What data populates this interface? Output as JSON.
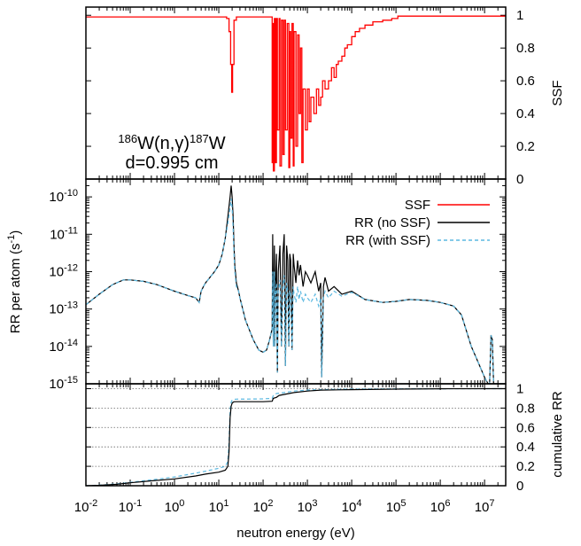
{
  "chart_data": [
    {
      "panel": "top",
      "type": "line",
      "xscale": "log",
      "xlim": [
        0.01,
        30000000
      ],
      "ylim": [
        0,
        1.05
      ],
      "ylabel": "SSF",
      "yticks": [
        "0",
        "0.2",
        "0.4",
        "0.6",
        "0.8",
        "1"
      ],
      "annotations": {
        "reaction_pre_sup": "186",
        "reaction_body": "W(n,γ)",
        "reaction_post_sup": "187",
        "reaction_end": "W",
        "thickness": "d=0.995 cm"
      },
      "series": [
        {
          "name": "SSF",
          "color": "#ff0000",
          "x": [
            0.01,
            15,
            17,
            18.5,
            19.5,
            20.5,
            22,
            25,
            150,
            160,
            165,
            170,
            180,
            190,
            200,
            210,
            230,
            240,
            260,
            280,
            300,
            320,
            350,
            380,
            400,
            420,
            450,
            480,
            500,
            550,
            600,
            650,
            700,
            750,
            800,
            900,
            1000,
            1100,
            1200,
            1400,
            1600,
            1800,
            2000,
            2200,
            2500,
            3000,
            3500,
            4000,
            4500,
            5000,
            6000,
            7000,
            8000,
            10000,
            12000,
            15000,
            20000,
            30000,
            50000,
            80000,
            110000,
            1000000,
            30000000
          ],
          "y": [
            0.99,
            0.98,
            0.9,
            0.7,
            0.53,
            0.7,
            0.97,
            0.99,
            0.99,
            0.1,
            0.95,
            0.05,
            0.98,
            0.1,
            0.98,
            0.3,
            0.98,
            0.08,
            0.97,
            0.15,
            0.97,
            0.3,
            0.95,
            0.07,
            0.9,
            0.25,
            0.95,
            0.08,
            0.9,
            0.2,
            0.88,
            0.4,
            0.8,
            0.1,
            0.55,
            0.3,
            0.55,
            0.35,
            0.5,
            0.4,
            0.55,
            0.45,
            0.5,
            0.6,
            0.55,
            0.6,
            0.68,
            0.62,
            0.7,
            0.72,
            0.75,
            0.8,
            0.82,
            0.87,
            0.9,
            0.92,
            0.94,
            0.96,
            0.97,
            0.98,
            0.995,
            0.995,
            0.995
          ]
        }
      ]
    },
    {
      "panel": "middle",
      "type": "line",
      "xscale": "log",
      "yscale": "log",
      "xlim": [
        0.01,
        30000000
      ],
      "ylim": [
        1e-15,
        3e-10
      ],
      "ylabel_main": "RR per atom (s",
      "ylabel_sup": "-1",
      "ylabel_end": ")",
      "ytick_exponents": [
        "-10",
        "-11",
        "-12",
        "-13",
        "-14",
        "-15"
      ],
      "ytick_base": "10",
      "legend_position": "top-right",
      "series": [
        {
          "name": "RR (no SSF)",
          "color": "#000000",
          "x": [
            0.01,
            0.02,
            0.04,
            0.07,
            0.1,
            0.2,
            0.4,
            0.7,
            1,
            2,
            3,
            3.6,
            4,
            4.5,
            5,
            6,
            8,
            10,
            12,
            14,
            16,
            18,
            19,
            20,
            21,
            22,
            23,
            25,
            28,
            30,
            40,
            60,
            80,
            100,
            120,
            140,
            160,
            165,
            170,
            175,
            180,
            185,
            190,
            200,
            210,
            220,
            240,
            260,
            280,
            300,
            320,
            340,
            360,
            380,
            400,
            420,
            450,
            480,
            500,
            550,
            600,
            650,
            700,
            800,
            900,
            1000,
            1200,
            1500,
            1800,
            2000,
            2100,
            2300,
            2500,
            3000,
            4000,
            6000,
            10000,
            20000,
            50000,
            100000,
            200000,
            500000,
            1000000,
            2000000,
            3000000,
            5000000,
            7000000,
            10000000,
            12000000,
            13000000,
            14000000,
            15000000,
            16000000,
            20000000,
            30000000
          ],
          "y": [
            1.3e-13,
            2.5e-13,
            4.5e-13,
            6e-13,
            6e-13,
            5.5e-13,
            4.5e-13,
            3.5e-13,
            3e-13,
            2.3e-13,
            2e-13,
            1.5e-13,
            3e-13,
            4e-13,
            5e-13,
            6.5e-13,
            1e-12,
            1.5e-12,
            3e-12,
            8e-12,
            3e-11,
            1e-10,
            2e-10,
            1e-10,
            3e-11,
            5e-12,
            1.5e-12,
            5e-13,
            3e-13,
            2e-13,
            5e-14,
            1.5e-14,
            8e-15,
            7e-15,
            8e-15,
            1.5e-14,
            3e-14,
            1e-11,
            1e-14,
            3e-13,
            5e-12,
            1e-14,
            5e-13,
            3e-12,
            2e-15,
            1e-12,
            5e-12,
            1e-14,
            3e-12,
            1e-11,
            3e-15,
            5e-12,
            2e-12,
            1e-14,
            3e-12,
            2e-12,
            8e-15,
            3e-12,
            1.5e-12,
            5e-13,
            2e-12,
            8e-13,
            1.5e-12,
            4e-13,
            1e-12,
            8e-13,
            5e-13,
            1e-12,
            3e-13,
            5e-13,
            1.5e-15,
            4e-13,
            7e-13,
            3e-13,
            4e-13,
            2.5e-13,
            3e-13,
            1.8e-13,
            1.5e-13,
            1.6e-13,
            1.8e-13,
            1.7e-13,
            1.5e-13,
            1.2e-13,
            7e-14,
            1e-14,
            4e-15,
            1.5e-15,
            1e-15,
            1e-15,
            2e-14,
            1.5e-14,
            1e-15,
            1e-15,
            1e-15
          ]
        },
        {
          "name": "RR (with SSF)",
          "color": "#5bb8e0",
          "x": [
            0.01,
            0.02,
            0.04,
            0.07,
            0.1,
            0.2,
            0.4,
            0.7,
            1,
            2,
            3,
            3.6,
            4,
            4.5,
            5,
            6,
            8,
            10,
            12,
            14,
            16,
            18,
            19,
            20,
            21,
            22,
            23,
            25,
            28,
            30,
            40,
            60,
            80,
            100,
            120,
            140,
            160,
            165,
            170,
            175,
            180,
            185,
            190,
            200,
            210,
            220,
            240,
            260,
            280,
            300,
            320,
            340,
            360,
            380,
            400,
            420,
            450,
            480,
            500,
            550,
            600,
            650,
            700,
            800,
            900,
            1000,
            1200,
            1500,
            1800,
            2000,
            2100,
            2300,
            2500,
            3000,
            4000,
            6000,
            10000,
            20000,
            50000,
            100000,
            200000,
            500000,
            1000000,
            2000000,
            3000000,
            5000000,
            7000000,
            10000000,
            12000000,
            13000000,
            14000000,
            15000000,
            16000000,
            20000000,
            30000000
          ],
          "y": [
            1.3e-13,
            2.5e-13,
            4.5e-13,
            6e-13,
            6e-13,
            5.5e-13,
            4.5e-13,
            3.5e-13,
            3e-13,
            2.3e-13,
            2e-13,
            1.5e-13,
            3e-13,
            4e-13,
            5e-13,
            6.5e-13,
            1e-12,
            1.5e-12,
            3e-12,
            8e-12,
            2e-11,
            5e-11,
            9e-11,
            5e-11,
            1.5e-11,
            3e-12,
            1e-12,
            4e-13,
            3e-13,
            2e-13,
            5e-14,
            1.5e-14,
            8e-15,
            7e-15,
            8e-15,
            1.5e-14,
            3e-14,
            1e-12,
            1e-14,
            2e-13,
            1e-12,
            1e-14,
            3e-13,
            5e-13,
            2e-15,
            3e-13,
            6e-13,
            1e-14,
            4e-13,
            8e-13,
            3e-15,
            5e-13,
            3e-13,
            1e-14,
            3e-13,
            3e-13,
            8e-15,
            4e-13,
            2.5e-13,
            1.5e-13,
            4e-13,
            1.8e-13,
            3e-13,
            1.5e-13,
            2.5e-13,
            2e-13,
            1.5e-13,
            2.5e-13,
            1.2e-13,
            2e-13,
            1.5e-15,
            2e-13,
            3e-13,
            2e-13,
            3e-13,
            2.2e-13,
            2.8e-13,
            1.8e-13,
            1.5e-13,
            1.6e-13,
            1.8e-13,
            1.7e-13,
            1.5e-13,
            1.2e-13,
            7e-14,
            1e-14,
            4e-15,
            1.5e-15,
            1e-15,
            1e-15,
            2e-14,
            1.5e-14,
            1e-15,
            1e-15,
            1e-15
          ]
        }
      ]
    },
    {
      "panel": "bottom",
      "type": "line",
      "xscale": "log",
      "xlim": [
        0.01,
        30000000
      ],
      "ylim": [
        0,
        1.05
      ],
      "xlabel": "neutron energy (eV)",
      "ylabel": "cumulative RR",
      "grid": true,
      "yticks": [
        "0",
        "0.2",
        "0.4",
        "0.6",
        "0.8",
        "1"
      ],
      "xtick_base": "10",
      "xtick_exponents": [
        "-2",
        "-1",
        "0",
        "1",
        "2",
        "3",
        "4",
        "5",
        "6",
        "7"
      ],
      "series": [
        {
          "name": "RR (no SSF)",
          "color": "#000000",
          "x": [
            0.01,
            0.02,
            0.05,
            0.1,
            0.3,
            1,
            3,
            5,
            10,
            14,
            16,
            17,
            18,
            19,
            20,
            21,
            22,
            25,
            50,
            100,
            160,
            170,
            200,
            230,
            300,
            500,
            1000,
            2000,
            10000,
            100000,
            1000000,
            30000000
          ],
          "y": [
            0,
            0.005,
            0.015,
            0.03,
            0.05,
            0.07,
            0.1,
            0.12,
            0.14,
            0.16,
            0.2,
            0.35,
            0.7,
            0.82,
            0.85,
            0.86,
            0.865,
            0.866,
            0.866,
            0.866,
            0.87,
            0.9,
            0.91,
            0.93,
            0.94,
            0.96,
            0.975,
            0.985,
            0.99,
            0.995,
            0.999,
            1.0
          ]
        },
        {
          "name": "RR (with SSF)",
          "color": "#5bb8e0",
          "x": [
            0.01,
            0.02,
            0.05,
            0.1,
            0.3,
            1,
            3,
            5,
            10,
            14,
            16,
            17,
            18,
            19,
            20,
            21,
            22,
            25,
            50,
            100,
            160,
            170,
            200,
            300,
            500,
            1000,
            2000,
            10000,
            100000,
            1000000,
            30000000
          ],
          "y": [
            0,
            0.006,
            0.018,
            0.035,
            0.06,
            0.09,
            0.13,
            0.15,
            0.18,
            0.2,
            0.25,
            0.45,
            0.78,
            0.86,
            0.88,
            0.885,
            0.89,
            0.892,
            0.893,
            0.895,
            0.9,
            0.93,
            0.95,
            0.96,
            0.975,
            0.985,
            0.99,
            0.995,
            0.998,
            0.999,
            1.0
          ]
        }
      ]
    }
  ],
  "legend": {
    "items": [
      {
        "label": "SSF",
        "color": "#ff0000",
        "dash": "none"
      },
      {
        "label": "RR (no SSF)",
        "color": "#000000",
        "dash": "none"
      },
      {
        "label": "RR (with SSF)",
        "color": "#5bb8e0",
        "dash": "4 3"
      }
    ]
  }
}
